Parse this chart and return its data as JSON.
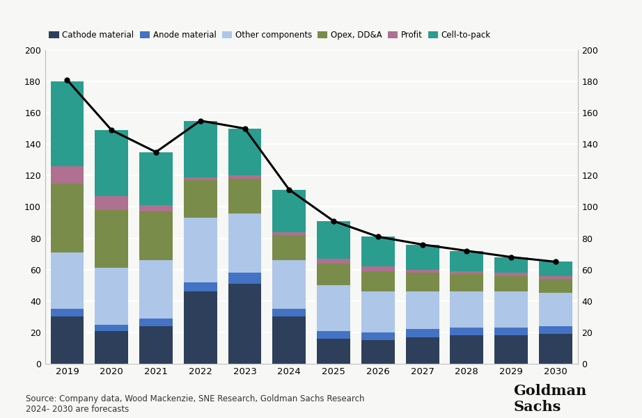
{
  "years": [
    2019,
    2020,
    2021,
    2022,
    2023,
    2024,
    2025,
    2026,
    2027,
    2028,
    2029,
    2030
  ],
  "cathode": [
    30,
    21,
    24,
    46,
    51,
    30,
    16,
    15,
    17,
    18,
    18,
    19
  ],
  "anode": [
    5,
    4,
    5,
    6,
    7,
    5,
    5,
    5,
    5,
    5,
    5,
    5
  ],
  "other": [
    36,
    36,
    37,
    41,
    38,
    31,
    29,
    26,
    24,
    23,
    23,
    21
  ],
  "opex": [
    44,
    37,
    31,
    24,
    22,
    16,
    14,
    13,
    12,
    11,
    10,
    9
  ],
  "profit": [
    11,
    9,
    4,
    2,
    2,
    2,
    3,
    3,
    2,
    2,
    2,
    2
  ],
  "cell2pack": [
    54,
    42,
    34,
    36,
    30,
    27,
    24,
    19,
    16,
    13,
    10,
    9
  ],
  "line": [
    181,
    149,
    135,
    155,
    150,
    111,
    91,
    81,
    76,
    72,
    68,
    65
  ],
  "colors": {
    "cathode": "#2d3f5a",
    "anode": "#4472c4",
    "other": "#aec6e8",
    "opex": "#7a8c4a",
    "profit": "#b07090",
    "cell2pack": "#2a9d8f"
  },
  "legend_labels": [
    "Cathode material",
    "Anode material",
    "Other components",
    "Opex, DD&A",
    "Profit",
    "Cell-to-pack"
  ],
  "ylim": [
    0,
    200
  ],
  "yticks": [
    0,
    20,
    40,
    60,
    80,
    100,
    120,
    140,
    160,
    180,
    200
  ],
  "source_text": "Source: Company data, Wood Mackenzie, SNE Research, Goldman Sachs Research\n2024- 2030 are forecasts",
  "bg_color": "#f7f7f5"
}
